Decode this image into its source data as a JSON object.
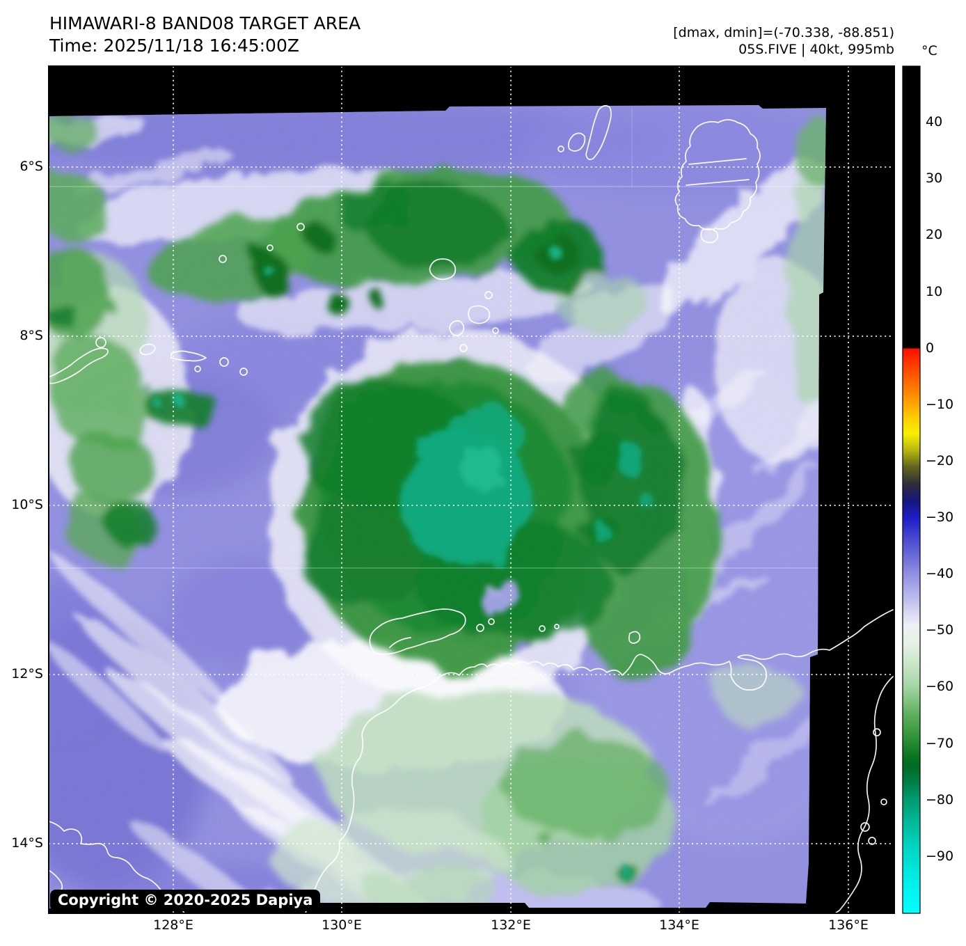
{
  "header": {
    "title": "HIMAWARI-8 BAND08 TARGET AREA",
    "time_line": "Time: 2025/11/18 16:45:00Z",
    "dmax_dmin": "[dmax, dmin]=(-70.338, -88.851)",
    "storm_info": "05S.FIVE | 40kt, 995mb"
  },
  "axes": {
    "x_ticks": [
      "128°E",
      "130°E",
      "132°E",
      "134°E",
      "136°E"
    ],
    "y_ticks": [
      "6°S",
      "8°S",
      "10°S",
      "12°S",
      "14°S"
    ]
  },
  "colorbar": {
    "unit": "°C",
    "max_value": 50,
    "min_value": -100,
    "ticks": [
      {
        "label": "40",
        "value": 40
      },
      {
        "label": "30",
        "value": 30
      },
      {
        "label": "20",
        "value": 20
      },
      {
        "label": "10",
        "value": 10
      },
      {
        "label": "0",
        "value": 0
      },
      {
        "label": "−10",
        "value": -10
      },
      {
        "label": "−20",
        "value": -20
      },
      {
        "label": "−30",
        "value": -30
      },
      {
        "label": "−40",
        "value": -40
      },
      {
        "label": "−50",
        "value": -50
      },
      {
        "label": "−60",
        "value": -60
      },
      {
        "label": "−70",
        "value": -70
      },
      {
        "label": "−80",
        "value": -80
      },
      {
        "label": "−90",
        "value": -90
      }
    ],
    "stops": [
      {
        "value": 50,
        "color": "#000000"
      },
      {
        "value": 0.05,
        "color": "#000000"
      },
      {
        "value": 0,
        "color": "#ff0d00"
      },
      {
        "value": -4,
        "color": "#ff4d00"
      },
      {
        "value": -8,
        "color": "#ff8800"
      },
      {
        "value": -12,
        "color": "#ffc800"
      },
      {
        "value": -15,
        "color": "#f8f000"
      },
      {
        "value": -18,
        "color": "#b8b810"
      },
      {
        "value": -21,
        "color": "#62621e"
      },
      {
        "value": -24,
        "color": "#2e2e38"
      },
      {
        "value": -27,
        "color": "#16167e"
      },
      {
        "value": -30,
        "color": "#1d1dc8"
      },
      {
        "value": -34,
        "color": "#4d4dd2"
      },
      {
        "value": -40,
        "color": "#9190e2"
      },
      {
        "value": -45,
        "color": "#c5c4ef"
      },
      {
        "value": -49,
        "color": "#efeff6"
      },
      {
        "value": -52,
        "color": "#e7f1e5"
      },
      {
        "value": -56,
        "color": "#c9e5c9"
      },
      {
        "value": -60,
        "color": "#a2d5a2"
      },
      {
        "value": -65,
        "color": "#5cae5c"
      },
      {
        "value": -69,
        "color": "#2e9336"
      },
      {
        "value": -72,
        "color": "#0c7623"
      },
      {
        "value": -74,
        "color": "#016c23"
      },
      {
        "value": -77,
        "color": "#007f4a"
      },
      {
        "value": -80,
        "color": "#009c72"
      },
      {
        "value": -84,
        "color": "#00ba9a"
      },
      {
        "value": -88,
        "color": "#00d2bf"
      },
      {
        "value": -92,
        "color": "#00e5dc"
      },
      {
        "value": -96,
        "color": "#00f4f1"
      },
      {
        "value": -100,
        "color": "#00fffd"
      }
    ]
  },
  "footer": {
    "copyright": "Copyright © 2020-2025 Dapiya"
  },
  "colors": {
    "no_data": "#000000",
    "ocean_purple": "#9290e1",
    "cloud_white": "#f4f4fa",
    "cold_green": "#3f9b45",
    "deep_green": "#0e7c27",
    "core_teal": "#0aa87c",
    "coastline": "#ffffff",
    "gridline": "#ffffff",
    "text": "#000000"
  }
}
